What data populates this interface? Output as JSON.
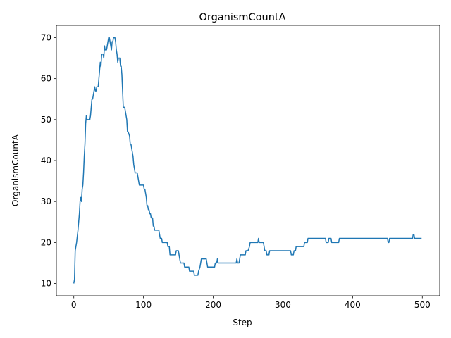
{
  "chart_data": {
    "type": "line",
    "title": "OrganismCountA",
    "xlabel": "Step",
    "ylabel": "OrganismCountA",
    "xlim": [
      -25,
      525
    ],
    "ylim": [
      7,
      73
    ],
    "xticks": [
      0,
      100,
      200,
      300,
      400,
      500
    ],
    "yticks": [
      10,
      20,
      30,
      40,
      50,
      60,
      70
    ],
    "grid": false,
    "series": [
      {
        "color": "#1f77b4",
        "points": [
          [
            0,
            10
          ],
          [
            1,
            11
          ],
          [
            2,
            18
          ],
          [
            4,
            20
          ],
          [
            6,
            23
          ],
          [
            8,
            27
          ],
          [
            9,
            30
          ],
          [
            10,
            31
          ],
          [
            11,
            30
          ],
          [
            12,
            33
          ],
          [
            13,
            34
          ],
          [
            14,
            37
          ],
          [
            15,
            41
          ],
          [
            16,
            44
          ],
          [
            17,
            49
          ],
          [
            18,
            51
          ],
          [
            19,
            50
          ],
          [
            20,
            50
          ],
          [
            22,
            50
          ],
          [
            23,
            50
          ],
          [
            24,
            51
          ],
          [
            25,
            53
          ],
          [
            26,
            55
          ],
          [
            27,
            55
          ],
          [
            28,
            56
          ],
          [
            29,
            57
          ],
          [
            30,
            58
          ],
          [
            31,
            57
          ],
          [
            32,
            57
          ],
          [
            33,
            58
          ],
          [
            35,
            58
          ],
          [
            36,
            60
          ],
          [
            37,
            62
          ],
          [
            38,
            64
          ],
          [
            39,
            63
          ],
          [
            40,
            66
          ],
          [
            42,
            66
          ],
          [
            43,
            65
          ],
          [
            44,
            68
          ],
          [
            45,
            67
          ],
          [
            47,
            67
          ],
          [
            48,
            68
          ],
          [
            49,
            69
          ],
          [
            50,
            70
          ],
          [
            51,
            70
          ],
          [
            52,
            69
          ],
          [
            53,
            68
          ],
          [
            54,
            67
          ],
          [
            55,
            69
          ],
          [
            56,
            69
          ],
          [
            57,
            70
          ],
          [
            59,
            70
          ],
          [
            60,
            69
          ],
          [
            61,
            67
          ],
          [
            62,
            66
          ],
          [
            63,
            64
          ],
          [
            64,
            65
          ],
          [
            66,
            65
          ],
          [
            67,
            63
          ],
          [
            68,
            63
          ],
          [
            69,
            61
          ],
          [
            70,
            57
          ],
          [
            71,
            53
          ],
          [
            72,
            53
          ],
          [
            73,
            53
          ],
          [
            74,
            52
          ],
          [
            75,
            51
          ],
          [
            76,
            50
          ],
          [
            77,
            47
          ],
          [
            78,
            47
          ],
          [
            80,
            46
          ],
          [
            81,
            44
          ],
          [
            82,
            44
          ],
          [
            83,
            43
          ],
          [
            84,
            42
          ],
          [
            85,
            41
          ],
          [
            86,
            39
          ],
          [
            87,
            38
          ],
          [
            88,
            37
          ],
          [
            90,
            37
          ],
          [
            91,
            37
          ],
          [
            92,
            36
          ],
          [
            93,
            35
          ],
          [
            94,
            34
          ],
          [
            96,
            34
          ],
          [
            98,
            34
          ],
          [
            100,
            34
          ],
          [
            101,
            33
          ],
          [
            102,
            33
          ],
          [
            103,
            32
          ],
          [
            104,
            31
          ],
          [
            105,
            29
          ],
          [
            106,
            29
          ],
          [
            107,
            28
          ],
          [
            108,
            28
          ],
          [
            109,
            27
          ],
          [
            110,
            27
          ],
          [
            111,
            26
          ],
          [
            113,
            26
          ],
          [
            114,
            24
          ],
          [
            115,
            24
          ],
          [
            116,
            23
          ],
          [
            118,
            23
          ],
          [
            122,
            23
          ],
          [
            123,
            22
          ],
          [
            124,
            21
          ],
          [
            126,
            21
          ],
          [
            127,
            20
          ],
          [
            130,
            20
          ],
          [
            133,
            20
          ],
          [
            134,
            20
          ],
          [
            135,
            19
          ],
          [
            137,
            19
          ],
          [
            138,
            17
          ],
          [
            140,
            17
          ],
          [
            143,
            17
          ],
          [
            146,
            17
          ],
          [
            147,
            18
          ],
          [
            150,
            18
          ],
          [
            151,
            17
          ],
          [
            153,
            15
          ],
          [
            155,
            15
          ],
          [
            158,
            15
          ],
          [
            159,
            14
          ],
          [
            162,
            14
          ],
          [
            165,
            14
          ],
          [
            166,
            13
          ],
          [
            169,
            13
          ],
          [
            172,
            13
          ],
          [
            173,
            12
          ],
          [
            176,
            12
          ],
          [
            178,
            12
          ],
          [
            179,
            13
          ],
          [
            181,
            14
          ],
          [
            182,
            15
          ],
          [
            183,
            16
          ],
          [
            185,
            16
          ],
          [
            188,
            16
          ],
          [
            190,
            16
          ],
          [
            191,
            15
          ],
          [
            192,
            14
          ],
          [
            195,
            14
          ],
          [
            198,
            14
          ],
          [
            200,
            14
          ],
          [
            202,
            14
          ],
          [
            203,
            15
          ],
          [
            205,
            15
          ],
          [
            206,
            16
          ],
          [
            207,
            15
          ],
          [
            210,
            15
          ],
          [
            220,
            15
          ],
          [
            230,
            15
          ],
          [
            233,
            15
          ],
          [
            234,
            16
          ],
          [
            235,
            15
          ],
          [
            237,
            15
          ],
          [
            238,
            16
          ],
          [
            239,
            17
          ],
          [
            241,
            17
          ],
          [
            244,
            17
          ],
          [
            246,
            17
          ],
          [
            247,
            18
          ],
          [
            250,
            18
          ],
          [
            252,
            19
          ],
          [
            253,
            20
          ],
          [
            255,
            20
          ],
          [
            260,
            20
          ],
          [
            264,
            20
          ],
          [
            265,
            21
          ],
          [
            266,
            20
          ],
          [
            270,
            20
          ],
          [
            272,
            20
          ],
          [
            273,
            19
          ],
          [
            274,
            18
          ],
          [
            276,
            18
          ],
          [
            277,
            17
          ],
          [
            280,
            17
          ],
          [
            281,
            18
          ],
          [
            283,
            18
          ],
          [
            290,
            18
          ],
          [
            300,
            18
          ],
          [
            311,
            18
          ],
          [
            312,
            17
          ],
          [
            315,
            17
          ],
          [
            316,
            18
          ],
          [
            318,
            18
          ],
          [
            319,
            19
          ],
          [
            322,
            19
          ],
          [
            326,
            19
          ],
          [
            330,
            19
          ],
          [
            331,
            20
          ],
          [
            334,
            20
          ],
          [
            335,
            20
          ],
          [
            336,
            21
          ],
          [
            340,
            21
          ],
          [
            350,
            21
          ],
          [
            360,
            21
          ],
          [
            361,
            21
          ],
          [
            362,
            20
          ],
          [
            365,
            20
          ],
          [
            366,
            21
          ],
          [
            369,
            21
          ],
          [
            370,
            20
          ],
          [
            373,
            20
          ],
          [
            375,
            20
          ],
          [
            380,
            20
          ],
          [
            381,
            21
          ],
          [
            390,
            21
          ],
          [
            400,
            21
          ],
          [
            410,
            21
          ],
          [
            420,
            21
          ],
          [
            430,
            21
          ],
          [
            440,
            21
          ],
          [
            450,
            21
          ],
          [
            451,
            20
          ],
          [
            452,
            20
          ],
          [
            453,
            21
          ],
          [
            460,
            21
          ],
          [
            470,
            21
          ],
          [
            480,
            21
          ],
          [
            486,
            21
          ],
          [
            487,
            22
          ],
          [
            488,
            22
          ],
          [
            489,
            21
          ],
          [
            495,
            21
          ],
          [
            499,
            21
          ]
        ]
      }
    ]
  }
}
